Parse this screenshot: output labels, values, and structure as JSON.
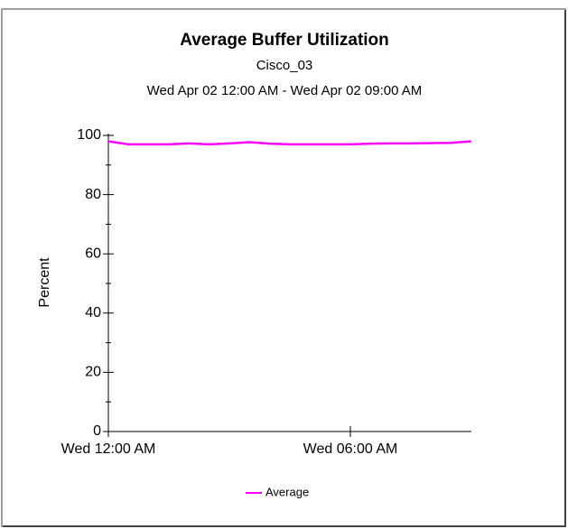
{
  "chart_data": {
    "type": "line",
    "title": "Average Buffer Utilization",
    "subtitle": "Cisco_03",
    "date_range": "Wed Apr 02 12:00 AM - Wed Apr 02 09:00 AM",
    "y_label": "Percent",
    "x": [
      0,
      0.5,
      1,
      1.5,
      2,
      2.5,
      3,
      3.5,
      4,
      4.5,
      5,
      5.5,
      6,
      6.5,
      7,
      7.5,
      8,
      8.5,
      9
    ],
    "series": [
      {
        "name": "Average",
        "color": "#ff00ff",
        "values": [
          98,
          97,
          97,
          97,
          97.3,
          97,
          97.3,
          97.7,
          97.2,
          97,
          97,
          97,
          97,
          97.2,
          97.3,
          97.3,
          97.4,
          97.5,
          98
        ]
      }
    ],
    "xlim": [
      0,
      9
    ],
    "xticks": [
      {
        "value": 0,
        "label": "Wed 12:00 AM"
      },
      {
        "value": 6,
        "label": "Wed 06:00 AM"
      }
    ],
    "ylim": [
      0,
      100
    ],
    "yticks": [
      0,
      20,
      40,
      60,
      80,
      100
    ],
    "yticks_minor": [
      10,
      30,
      50,
      70,
      90
    ],
    "legend": "bottom"
  }
}
